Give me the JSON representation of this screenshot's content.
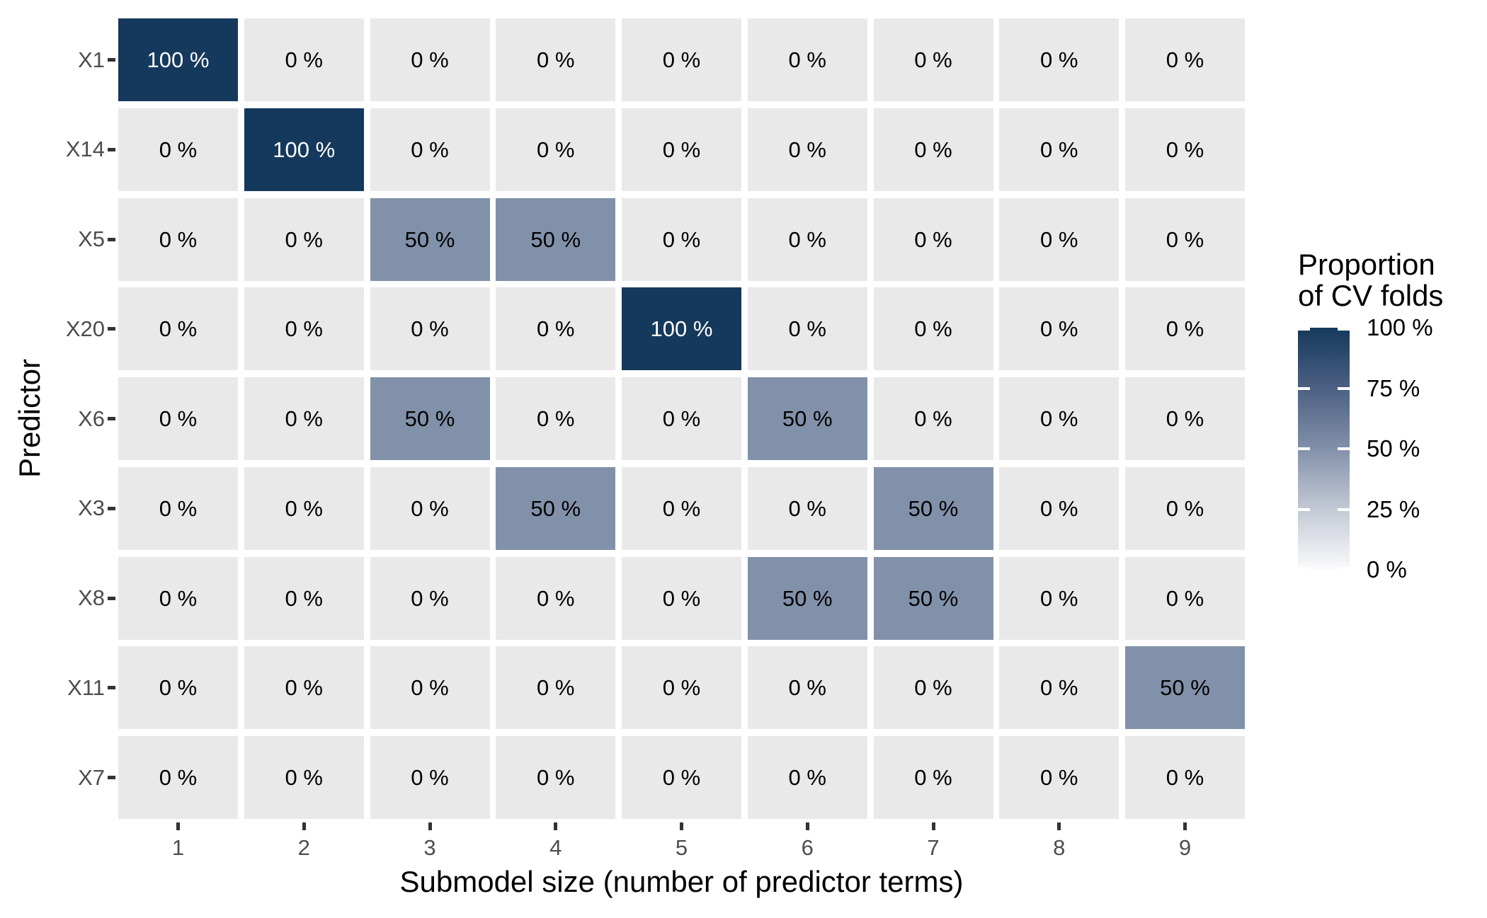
{
  "chart_data": {
    "type": "heatmap",
    "title": "",
    "xlabel": "Submodel size (number of predictor terms)",
    "ylabel": "Predictor",
    "x_categories": [
      "1",
      "2",
      "3",
      "4",
      "5",
      "6",
      "7",
      "8",
      "9"
    ],
    "y_categories": [
      "X1",
      "X14",
      "X5",
      "X20",
      "X6",
      "X3",
      "X8",
      "X11",
      "X7"
    ],
    "values_percent": [
      [
        100,
        0,
        0,
        0,
        0,
        0,
        0,
        0,
        0
      ],
      [
        0,
        100,
        0,
        0,
        0,
        0,
        0,
        0,
        0
      ],
      [
        0,
        0,
        50,
        50,
        0,
        0,
        0,
        0,
        0
      ],
      [
        0,
        0,
        0,
        0,
        100,
        0,
        0,
        0,
        0
      ],
      [
        0,
        0,
        50,
        0,
        0,
        50,
        0,
        0,
        0
      ],
      [
        0,
        0,
        0,
        50,
        0,
        0,
        50,
        0,
        0
      ],
      [
        0,
        0,
        0,
        0,
        0,
        50,
        50,
        0,
        0
      ],
      [
        0,
        0,
        0,
        0,
        0,
        0,
        0,
        0,
        50
      ],
      [
        0,
        0,
        0,
        0,
        0,
        0,
        0,
        0,
        0
      ]
    ],
    "cell_label_suffix": " %",
    "grid": false,
    "legend_position": "right",
    "legend": {
      "title_lines": [
        "Proportion",
        "of CV folds"
      ],
      "tick_values": [
        100,
        75,
        50,
        25,
        0
      ],
      "tick_labels": [
        "100 %",
        "75 %",
        "50 %",
        "25 %",
        "0 %"
      ]
    },
    "colors": {
      "value_fill": {
        "0": "#E9E9E9",
        "50": "#8291AA",
        "100": "#15395C"
      },
      "value_text": {
        "0": "#000000",
        "50": "#000000",
        "100": "#FFFFFF"
      },
      "gradient_stops": [
        "#15395C",
        "#4C6083",
        "#8291AA",
        "#C3C9D5",
        "#FBFBFC"
      ],
      "axis_tick_label": "#4D4D4D",
      "axis_tick_mark": "#333333",
      "axis_title": "#000000",
      "background": "#FFFFFF"
    }
  }
}
